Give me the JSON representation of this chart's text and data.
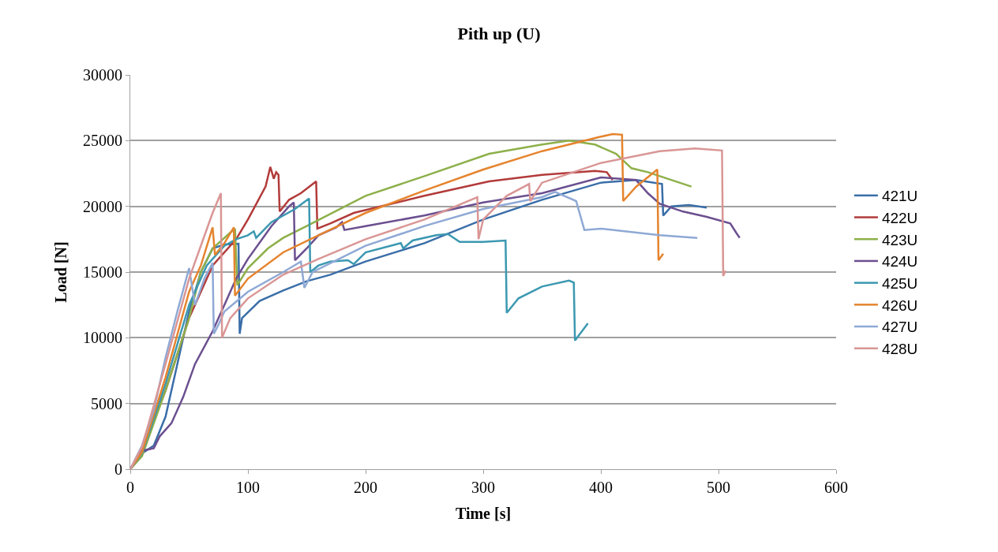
{
  "chart_data": {
    "type": "line",
    "title": "Pith up (U)",
    "xlabel": "Time [s]",
    "ylabel": "Load [N]",
    "xlim": [
      0,
      600
    ],
    "xticks": [
      0,
      100,
      200,
      300,
      400,
      500,
      600
    ],
    "ylim": [
      0,
      30000
    ],
    "yticks": [
      0,
      5000,
      10000,
      15000,
      20000,
      25000,
      30000
    ],
    "grid": "y",
    "legend": "right",
    "marker": "none",
    "line_style": "solid",
    "series": [
      {
        "name": "421U",
        "color": "#3a6ea8",
        "x": [
          0,
          10,
          20,
          30,
          40,
          50,
          60,
          70,
          80,
          92,
          93,
          95,
          110,
          130,
          150,
          170,
          200,
          250,
          300,
          350,
          400,
          430,
          452,
          453,
          460,
          475,
          490
        ],
        "values": [
          0,
          1200,
          1800,
          4000,
          8000,
          12000,
          15000,
          16800,
          17100,
          17150,
          10300,
          11500,
          12800,
          13600,
          14300,
          14800,
          15800,
          17200,
          19000,
          20500,
          21800,
          22000,
          21700,
          19300,
          20000,
          20100,
          19900
        ]
      },
      {
        "name": "422U",
        "color": "#b23b3a",
        "x": [
          0,
          10,
          30,
          50,
          70,
          90,
          100,
          115,
          119,
          122,
          124,
          126,
          127,
          135,
          145,
          158,
          159,
          170,
          190,
          250,
          305,
          350,
          395,
          405,
          410
        ],
        "values": [
          0,
          1500,
          6000,
          11500,
          15500,
          17500,
          19000,
          21500,
          23000,
          22100,
          22600,
          22400,
          19600,
          20500,
          21000,
          21900,
          18300,
          18700,
          19500,
          20800,
          21900,
          22400,
          22700,
          22600,
          22000
        ]
      },
      {
        "name": "423U",
        "color": "#8db04a",
        "x": [
          0,
          10,
          30,
          50,
          60,
          70,
          85,
          89,
          91,
          100,
          117,
          130,
          150,
          200,
          250,
          305,
          350,
          373,
          395,
          413,
          426,
          440,
          477
        ],
        "values": [
          0,
          1000,
          6000,
          11500,
          15000,
          16800,
          18000,
          18300,
          14000,
          15300,
          16800,
          17600,
          18500,
          20800,
          22300,
          24000,
          24700,
          25000,
          24700,
          24000,
          22900,
          22600,
          21500
        ]
      },
      {
        "name": "424U",
        "color": "#6b4f8f",
        "x": [
          0,
          10,
          20,
          25,
          35,
          45,
          55,
          70,
          80,
          90,
          100,
          120,
          135,
          139,
          140,
          150,
          160,
          175,
          180,
          182,
          200,
          250,
          300,
          350,
          400,
          430,
          440,
          450,
          470,
          490,
          510,
          515,
          518
        ],
        "values": [
          0,
          1400,
          1600,
          2500,
          3500,
          5500,
          8000,
          10500,
          12500,
          14500,
          16000,
          18500,
          20000,
          20300,
          15900,
          16800,
          17800,
          18400,
          18800,
          18200,
          18500,
          19300,
          20300,
          21000,
          22200,
          22000,
          21000,
          20200,
          19600,
          19200,
          18700,
          18000,
          17600
        ]
      },
      {
        "name": "425U",
        "color": "#3b98b1",
        "x": [
          0,
          10,
          30,
          50,
          65,
          80,
          90,
          100,
          105,
          107,
          120,
          140,
          152,
          153,
          160,
          170,
          185,
          190,
          200,
          230,
          232,
          240,
          260,
          270,
          280,
          300,
          319,
          320,
          330,
          350,
          373,
          377,
          378,
          389
        ],
        "values": [
          0,
          1200,
          6500,
          12500,
          15500,
          17000,
          17500,
          17800,
          18100,
          17600,
          18800,
          19800,
          20600,
          15000,
          15500,
          15800,
          15900,
          15600,
          16500,
          17200,
          16800,
          17400,
          17800,
          17900,
          17300,
          17300,
          17400,
          11900,
          13000,
          13900,
          14350,
          14200,
          9800,
          11100
        ]
      },
      {
        "name": "426U",
        "color": "#e5842e",
        "x": [
          0,
          10,
          30,
          50,
          60,
          70,
          72,
          80,
          88,
          89,
          100,
          130,
          160,
          200,
          250,
          300,
          350,
          400,
          410,
          418,
          419,
          430,
          448,
          449,
          453
        ],
        "values": [
          0,
          1300,
          7000,
          13500,
          15500,
          18400,
          16300,
          17200,
          18400,
          13200,
          14500,
          16500,
          17800,
          19500,
          21200,
          22800,
          24200,
          25300,
          25500,
          25450,
          20400,
          21500,
          22800,
          15900,
          16400
        ]
      },
      {
        "name": "427U",
        "color": "#8fa9d5",
        "x": [
          0,
          10,
          20,
          30,
          40,
          50,
          55,
          63,
          70,
          71,
          75,
          80,
          100,
          130,
          145,
          148,
          155,
          200,
          250,
          300,
          350,
          361,
          379,
          386,
          400,
          450,
          482
        ],
        "values": [
          0,
          1800,
          4500,
          8500,
          12000,
          15300,
          12500,
          14500,
          15700,
          10300,
          11000,
          12000,
          13500,
          15000,
          15800,
          13800,
          15000,
          17000,
          18500,
          19800,
          20700,
          21100,
          20400,
          18200,
          18300,
          17800,
          17600
        ]
      },
      {
        "name": "428U",
        "color": "#d99695",
        "x": [
          0,
          10,
          30,
          50,
          60,
          70,
          77,
          78,
          85,
          100,
          130,
          160,
          200,
          250,
          295,
          296,
          300,
          320,
          339,
          340,
          350,
          400,
          450,
          480,
          503,
          504,
          506
        ],
        "values": [
          0,
          1700,
          8000,
          14500,
          17000,
          19500,
          21000,
          10000,
          11500,
          13000,
          14800,
          16000,
          17500,
          19000,
          20700,
          17500,
          19000,
          20800,
          21700,
          20400,
          21800,
          23300,
          24200,
          24400,
          24250,
          14700,
          15100
        ]
      }
    ]
  }
}
